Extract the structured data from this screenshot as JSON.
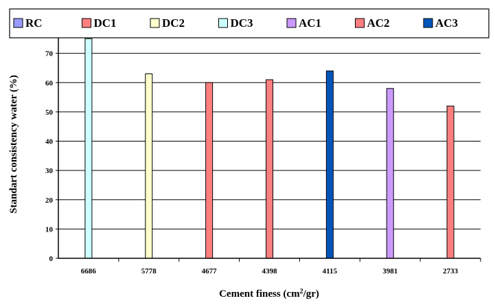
{
  "chart_data": {
    "type": "bar",
    "title": "",
    "xlabel": "Cement finess (cm",
    "xlabel_sup": "2",
    "xlabel_suffix": "/gr)",
    "ylabel": "Standart consistency water (%)",
    "ylim": [
      0,
      80
    ],
    "yticks": [
      0,
      10,
      20,
      30,
      40,
      50,
      60,
      70,
      80
    ],
    "grid": true,
    "legend_position": "top",
    "categories": [
      "6686",
      "5778",
      "4677",
      "4398",
      "4115",
      "3981",
      "2733"
    ],
    "series": [
      {
        "name": "RC",
        "color": "#9999ff",
        "values": [
          null,
          null,
          null,
          null,
          null,
          null,
          null
        ]
      },
      {
        "name": "DC1",
        "color": "#ff7f7f",
        "values": [
          null,
          null,
          null,
          null,
          null,
          null,
          null
        ]
      },
      {
        "name": "DC2",
        "color": "#ffffcc",
        "values": [
          null,
          63,
          null,
          null,
          null,
          null,
          null
        ]
      },
      {
        "name": "DC3",
        "color": "#ccffff",
        "values": [
          75,
          null,
          null,
          null,
          null,
          null,
          null
        ]
      },
      {
        "name": "AC1",
        "color": "#cc99ff",
        "values": [
          null,
          null,
          null,
          null,
          null,
          58,
          null
        ]
      },
      {
        "name": "AC2",
        "color": "#ff7f7f",
        "values": [
          null,
          null,
          60,
          61,
          null,
          null,
          52
        ]
      },
      {
        "name": "AC3",
        "color": "#0055bb",
        "values": [
          null,
          null,
          null,
          null,
          64,
          null,
          null
        ]
      }
    ]
  }
}
